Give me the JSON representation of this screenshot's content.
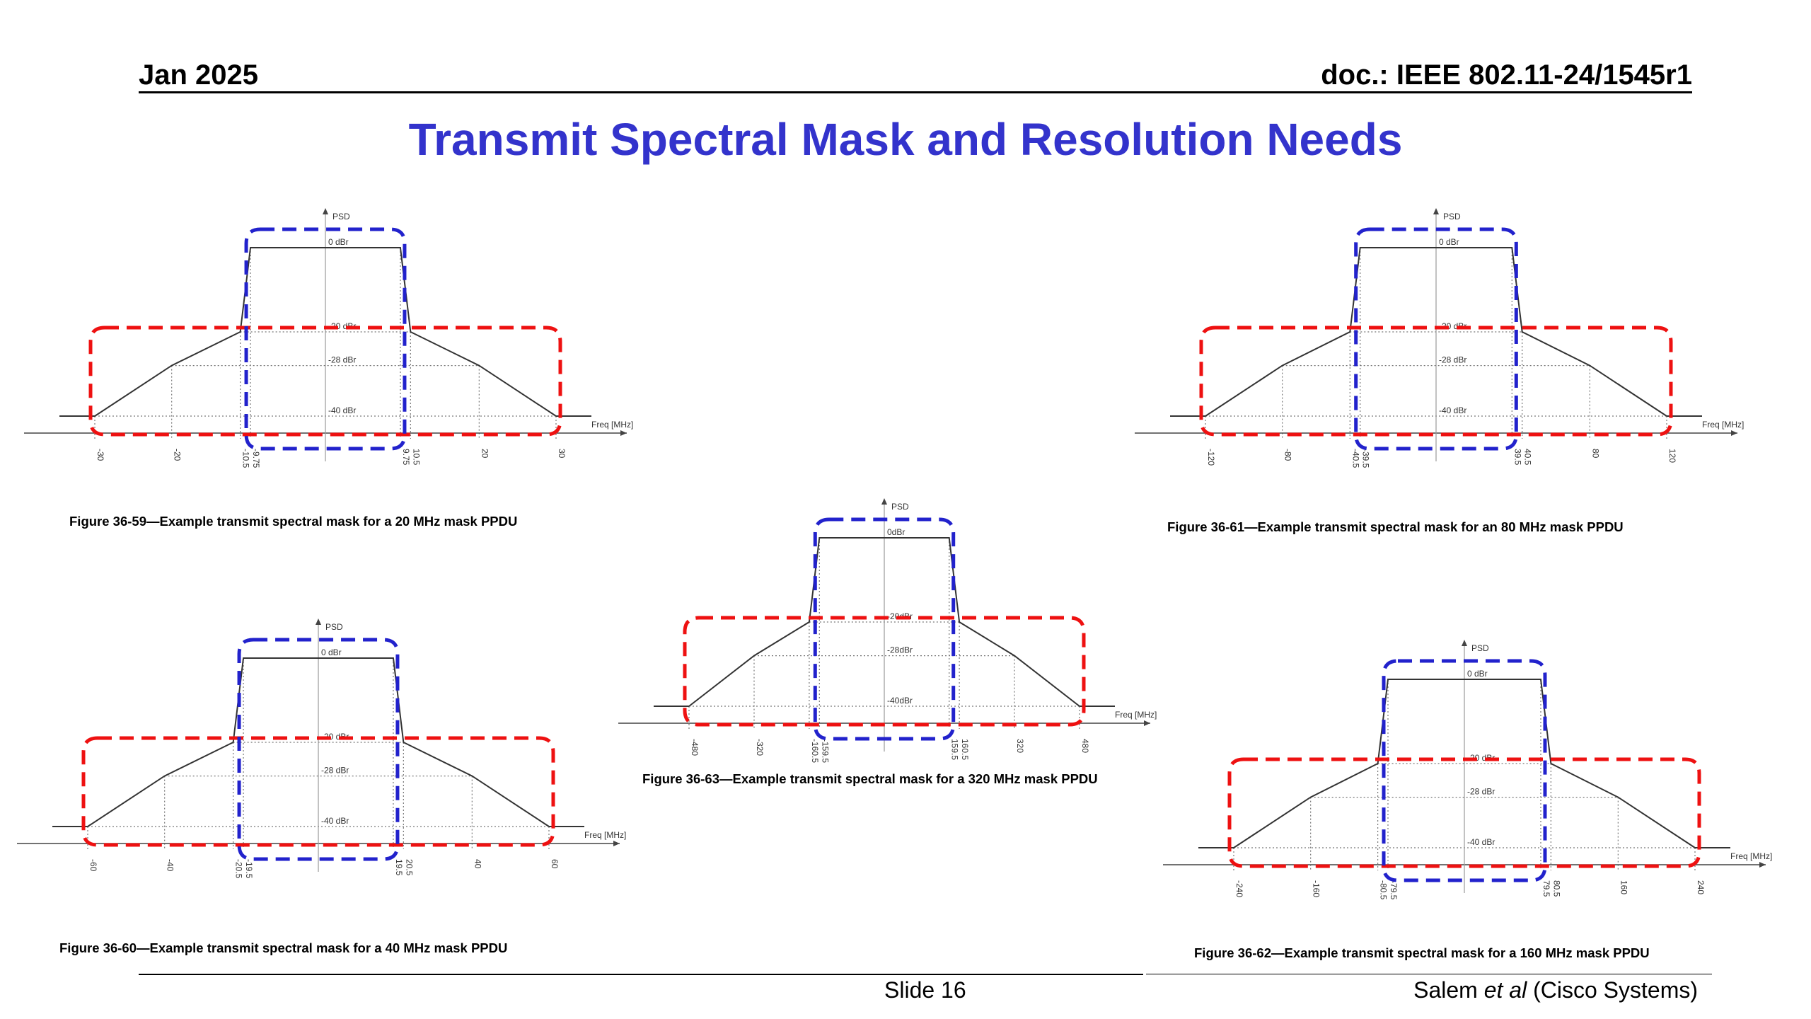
{
  "header": {
    "date": "Jan 2025",
    "doc": "doc.: IEEE 802.11-24/1545r1"
  },
  "title": "Transmit Spectral Mask and Resolution Needs",
  "footer": {
    "slide": "Slide 16",
    "author_name": "Salem ",
    "author_etal": "et al",
    "author_org": " (Cisco Systems)"
  },
  "colors": {
    "title": "#3333cc",
    "red_outline": "#ee1111",
    "blue_outline": "#2222cc",
    "mask_line": "#444444"
  },
  "chart_data": [
    {
      "id": "fig-20",
      "type": "line",
      "caption": "Figure 36-59—Example transmit spectral mask for a 20 MHz mask PPDU",
      "ylabel": "PSD",
      "xlabel": "Freq [MHz]",
      "x": [
        -30,
        -20,
        -10.5,
        -9.75,
        9.75,
        10.5,
        20,
        30
      ],
      "y": [
        -40,
        -28,
        -20,
        0,
        0,
        -20,
        -28,
        -40
      ],
      "x_ticks": [
        "-30",
        "-20",
        "-10.5",
        "-9.75",
        "9.75",
        "10.5",
        "20",
        "30"
      ],
      "y_labels": [
        "0 dBr",
        "-20 dBr",
        "-28 dBr",
        "-40 dBr"
      ],
      "outline_red": {
        "x": [
          -30,
          30
        ],
        "y": [
          -40,
          -20
        ]
      },
      "outline_blue": {
        "x": [
          -9.75,
          9.75
        ],
        "y": [
          -40,
          0
        ]
      }
    },
    {
      "id": "fig-40",
      "type": "line",
      "caption": "Figure 36-60—Example transmit spectral mask for a 40 MHz mask PPDU",
      "ylabel": "PSD",
      "xlabel": "Freq [MHz]",
      "x": [
        -60,
        -40,
        -20.5,
        -19.5,
        19.5,
        20.5,
        40,
        60
      ],
      "y": [
        -40,
        -28,
        -20,
        0,
        0,
        -20,
        -28,
        -40
      ],
      "x_ticks": [
        "-60",
        "-40",
        "-20.5",
        "-19.5",
        "19.5",
        "20.5",
        "40",
        "60"
      ],
      "y_labels": [
        "0 dBr",
        "-20 dBr",
        "-28 dBr",
        "-40 dBr"
      ],
      "outline_red": {
        "x": [
          -60,
          60
        ],
        "y": [
          -40,
          -20
        ]
      },
      "outline_blue": {
        "x": [
          -19.5,
          19.5
        ],
        "y": [
          -40,
          0
        ]
      }
    },
    {
      "id": "fig-80",
      "type": "line",
      "caption": "Figure 36-61—Example transmit spectral mask for an 80 MHz mask PPDU",
      "ylabel": "PSD",
      "xlabel": "Freq [MHz]",
      "x": [
        -120,
        -80,
        -40.5,
        -39.5,
        39.5,
        40.5,
        80,
        120
      ],
      "y": [
        -40,
        -28,
        -20,
        0,
        0,
        -20,
        -28,
        -40
      ],
      "x_ticks": [
        "-120",
        "-80",
        "-40.5",
        "-39.5",
        "39.5",
        "40.5",
        "80",
        "120"
      ],
      "y_labels": [
        "0 dBr",
        "-20 dBr",
        "-28 dBr",
        "-40 dBr"
      ],
      "outline_red": {
        "x": [
          -120,
          120
        ],
        "y": [
          -40,
          -20
        ]
      },
      "outline_blue": {
        "x": [
          -39.5,
          39.5
        ],
        "y": [
          -40,
          0
        ]
      }
    },
    {
      "id": "fig-160",
      "type": "line",
      "caption": "Figure 36-62—Example transmit spectral mask for a 160 MHz mask PPDU",
      "ylabel": "PSD",
      "xlabel": "Freq [MHz]",
      "x": [
        -240,
        -160,
        -80.5,
        -79.5,
        79.5,
        80.5,
        160,
        240
      ],
      "y": [
        -40,
        -28,
        -20,
        0,
        0,
        -20,
        -28,
        -40
      ],
      "x_ticks": [
        "-240",
        "-160",
        "-80.5",
        "-79.5",
        "79.5",
        "80.5",
        "160",
        "240"
      ],
      "y_labels": [
        "0 dBr",
        "-20 dBr",
        "-28 dBr",
        "-40 dBr"
      ],
      "outline_red": {
        "x": [
          -240,
          240
        ],
        "y": [
          -40,
          -20
        ]
      },
      "outline_blue": {
        "x": [
          -79.5,
          79.5
        ],
        "y": [
          -40,
          0
        ]
      }
    },
    {
      "id": "fig-320",
      "type": "line",
      "caption": "Figure 36-63—Example transmit spectral mask for a 320 MHz mask PPDU",
      "ylabel": "PSD",
      "xlabel": "Freq [MHz]",
      "x": [
        -480,
        -320,
        -160.5,
        -159.5,
        159.5,
        160.5,
        320,
        480
      ],
      "y": [
        -40,
        -28,
        -20,
        0,
        0,
        -20,
        -28,
        -40
      ],
      "x_ticks": [
        "-480",
        "-320",
        "-160.5",
        "-159.5",
        "159.5",
        "160.5",
        "320",
        "480"
      ],
      "y_labels": [
        "0dBr",
        "-20dBr",
        "-28dBr",
        "-40dBr"
      ],
      "outline_red": {
        "x": [
          -480,
          480
        ],
        "y": [
          -40,
          -20
        ]
      },
      "outline_blue": {
        "x": [
          -159.5,
          159.5
        ],
        "y": [
          -40,
          0
        ]
      }
    }
  ]
}
